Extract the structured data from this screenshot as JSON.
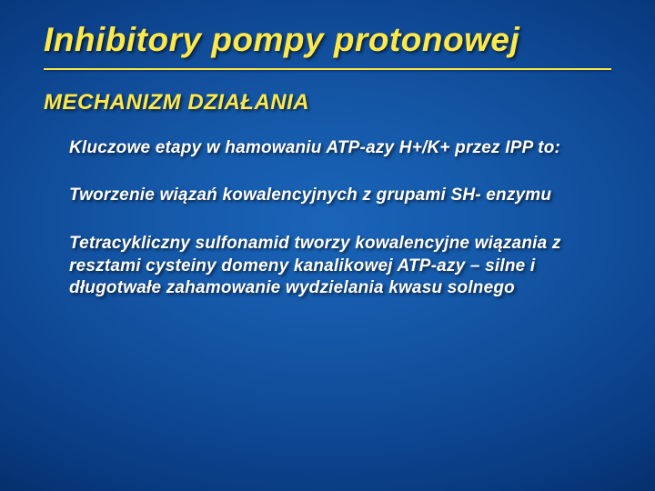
{
  "slide": {
    "background_gradient": {
      "type": "radial",
      "center_color": "#1a64b8",
      "mid_color": "#0f4a96",
      "edge_color": "#021d48"
    },
    "title": {
      "text": "Inhibitory pompy protonowej",
      "color": "#ffe94a",
      "fontsize": 37,
      "weight": "bold",
      "italic": true
    },
    "divider": {
      "color": "#ffe94a"
    },
    "subtitle": {
      "text": "MECHANIZM DZIAŁANIA",
      "color": "#ffe94a",
      "fontsize": 24,
      "weight": "bold",
      "italic": true
    },
    "paragraphs": [
      {
        "text": "Kluczowe etapy w hamowaniu ATP-azy H+/K+ przez IPP to:",
        "color": "#ffffff",
        "fontsize": 19
      },
      {
        "text": "Tworzenie wiązań kowalencyjnych z grupami SH- enzymu",
        "color": "#ffffff",
        "fontsize": 19
      },
      {
        "text": "Tetracykliczny sulfonamid tworzy kowalencyjne wiązania z resztami cysteiny domeny kanalikowej ATP-azy – silne i długotwałe zahamowanie wydzielania kwasu solnego",
        "color": "#ffffff",
        "fontsize": 19
      }
    ]
  }
}
